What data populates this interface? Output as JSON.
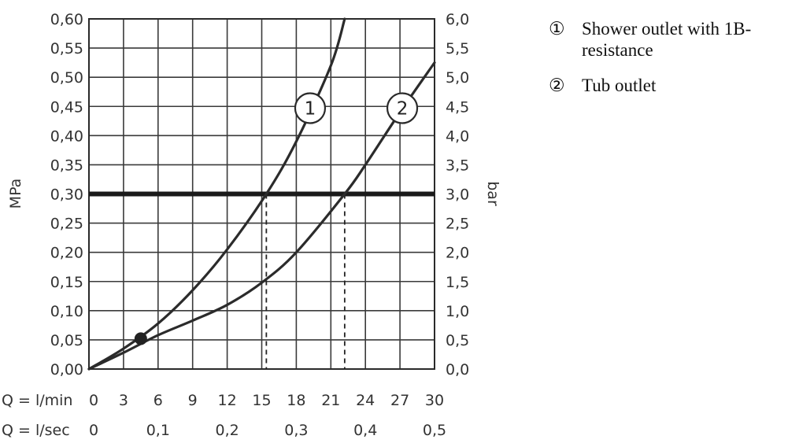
{
  "chart_data": {
    "type": "line",
    "y_left": {
      "label": "MPa",
      "ylim": [
        0,
        0.6
      ],
      "ticks": [
        "0,00",
        "0,05",
        "0,10",
        "0,15",
        "0,20",
        "0,25",
        "0,30",
        "0,35",
        "0,40",
        "0,45",
        "0,50",
        "0,55",
        "0,60"
      ]
    },
    "y_right": {
      "label": "bar",
      "ylim": [
        0,
        6
      ],
      "ticks": [
        "0,0",
        "0,5",
        "1,0",
        "1,5",
        "2,0",
        "2,5",
        "3,0",
        "3,5",
        "4,0",
        "4,5",
        "5,0",
        "5,5",
        "6,0"
      ]
    },
    "x_lpm": {
      "label": "Q = l/min",
      "xlim": [
        0,
        30
      ],
      "ticks": [
        {
          "v": 0,
          "t": "0"
        },
        {
          "v": 3,
          "t": "3"
        },
        {
          "v": 6,
          "t": "6"
        },
        {
          "v": 9,
          "t": "9"
        },
        {
          "v": 12,
          "t": "12"
        },
        {
          "v": 15,
          "t": "15"
        },
        {
          "v": 18,
          "t": "18"
        },
        {
          "v": 21,
          "t": "21"
        },
        {
          "v": 24,
          "t": "24"
        },
        {
          "v": 27,
          "t": "27"
        },
        {
          "v": 30,
          "t": "30"
        }
      ]
    },
    "x_lps": {
      "label": "Q = l/sec",
      "ticks": [
        {
          "v": 0,
          "t": "0"
        },
        {
          "v": 0.1,
          "t": "0,1"
        },
        {
          "v": 0.2,
          "t": "0,2"
        },
        {
          "v": 0.3,
          "t": "0,3"
        },
        {
          "v": 0.4,
          "t": "0,4"
        },
        {
          "v": 0.5,
          "t": "0,5"
        }
      ]
    },
    "grid": true,
    "series": [
      {
        "name": "Shower outlet with 1B-resistance",
        "marker": "1",
        "color": "#2b2b2b",
        "x": [
          0,
          3,
          6,
          9,
          12,
          15.4,
          18,
          21,
          22.2
        ],
        "y": [
          0,
          0.035,
          0.078,
          0.135,
          0.205,
          0.3,
          0.39,
          0.52,
          0.6
        ]
      },
      {
        "name": "Tub outlet",
        "marker": "2",
        "color": "#2b2b2b",
        "x": [
          0,
          3,
          6,
          9,
          12,
          15,
          18,
          22.2,
          24,
          27,
          30
        ],
        "y": [
          0,
          0.028,
          0.058,
          0.083,
          0.11,
          0.148,
          0.2,
          0.3,
          0.35,
          0.44,
          0.525
        ]
      }
    ],
    "reference_line": {
      "y": 0.3,
      "color": "#1a1a1a"
    },
    "dropdowns": [
      15.4,
      22.2
    ],
    "point": {
      "x": 4.5,
      "y": 0.052
    },
    "marker_labels": [
      {
        "t": "1",
        "x": 19.2,
        "y": 0.447
      },
      {
        "t": "2",
        "x": 27.2,
        "y": 0.447
      }
    ],
    "legend": [
      {
        "symbol": "①",
        "lines": [
          "Shower outlet with 1B-",
          "resistance"
        ]
      },
      {
        "symbol": "②",
        "lines": [
          "Tub outlet"
        ]
      }
    ]
  }
}
